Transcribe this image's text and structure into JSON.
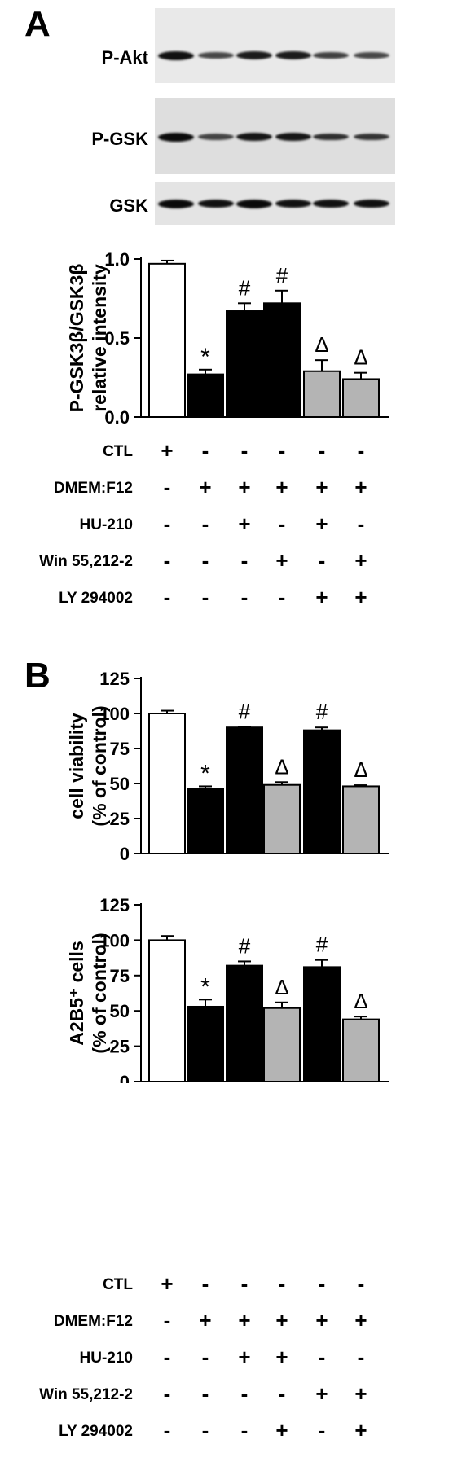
{
  "panel_a": {
    "letter": "A",
    "blots": [
      {
        "label": "P-Akt",
        "bg": "#e9e9e9",
        "band_color": "#101010",
        "intensity": [
          1.0,
          0.55,
          0.9,
          0.9,
          0.6,
          0.55
        ]
      },
      {
        "label": "P-GSK",
        "bg": "#dedede",
        "band_color": "#0c0c0c",
        "intensity": [
          1.0,
          0.5,
          0.9,
          0.9,
          0.7,
          0.65
        ]
      },
      {
        "label": "GSK",
        "bg": "#e4e4e4",
        "band_color": "#0a0a0a",
        "intensity": [
          1.0,
          0.95,
          1.0,
          0.95,
          0.95,
          0.95
        ]
      }
    ],
    "treatments": [
      {
        "label": "CTL",
        "marks": [
          "+",
          "-",
          "-",
          "-",
          "-",
          "-"
        ]
      },
      {
        "label": "DMEM:F12",
        "marks": [
          "-",
          "+",
          "+",
          "+",
          "+",
          "+"
        ]
      },
      {
        "label": "HU-210",
        "marks": [
          "-",
          "-",
          "+",
          "-",
          "+",
          "-"
        ]
      },
      {
        "label": "Win 55,212-2",
        "marks": [
          "-",
          "-",
          "-",
          "+",
          "-",
          "+"
        ]
      },
      {
        "label": "LY 294002",
        "marks": [
          "-",
          "-",
          "-",
          "-",
          "+",
          "+"
        ]
      }
    ]
  },
  "panel_b": {
    "letter": "B",
    "treatments": [
      {
        "label": "CTL",
        "marks": [
          "+",
          "-",
          "-",
          "-",
          "-",
          "-"
        ]
      },
      {
        "label": "DMEM:F12",
        "marks": [
          "-",
          "+",
          "+",
          "+",
          "+",
          "+"
        ]
      },
      {
        "label": "HU-210",
        "marks": [
          "-",
          "-",
          "+",
          "+",
          "-",
          "-"
        ]
      },
      {
        "label": "Win 55,212-2",
        "marks": [
          "-",
          "-",
          "-",
          "-",
          "+",
          "+"
        ]
      },
      {
        "label": "LY 294002",
        "marks": [
          "-",
          "-",
          "-",
          "+",
          "-",
          "+"
        ]
      }
    ]
  },
  "colors": {
    "white_bar": "#ffffff",
    "black_bar": "#000000",
    "gray_bar": "#b4b4b4"
  },
  "chart_data": [
    {
      "type": "bar",
      "ylabel_lines": [
        "P-GSK3β/GSK3β",
        "relative intensity"
      ],
      "ylim": [
        0,
        1.0
      ],
      "yticks": [
        0,
        0.5,
        1.0
      ],
      "yticklabels": [
        "0.0",
        "0.5",
        "1.0"
      ],
      "values": [
        0.97,
        0.27,
        0.67,
        0.72,
        0.29,
        0.24
      ],
      "errors": [
        0.02,
        0.03,
        0.05,
        0.08,
        0.07,
        0.04
      ],
      "bar_colors": [
        "white",
        "black",
        "black",
        "black",
        "gray",
        "gray"
      ],
      "annotations": [
        "",
        "*",
        "#",
        "#",
        "Δ",
        "Δ"
      ]
    },
    {
      "type": "bar",
      "ylabel_lines": [
        "cell viability",
        "(% of control)"
      ],
      "ylim": [
        0,
        125
      ],
      "yticks": [
        0,
        25,
        50,
        75,
        100,
        125
      ],
      "yticklabels": [
        "0",
        "25",
        "50",
        "75",
        "100",
        "125"
      ],
      "values": [
        100,
        46,
        90,
        49,
        88,
        48
      ],
      "errors": [
        2,
        2,
        0.5,
        2,
        2,
        0.8
      ],
      "bar_colors": [
        "white",
        "black",
        "black",
        "gray",
        "black",
        "gray"
      ],
      "annotations": [
        "",
        "*",
        "#",
        "Δ",
        "#",
        "Δ"
      ]
    },
    {
      "type": "bar",
      "ylabel_lines": [
        "A2B5⁺ cells",
        "(% of control)"
      ],
      "ylim": [
        0,
        125
      ],
      "yticks": [
        0,
        25,
        50,
        75,
        100,
        125
      ],
      "yticklabels": [
        "0",
        "25",
        "50",
        "75",
        "100",
        "125"
      ],
      "values": [
        100,
        53,
        82,
        52,
        81,
        44
      ],
      "errors": [
        3,
        5,
        3,
        4,
        5,
        2
      ],
      "bar_colors": [
        "white",
        "black",
        "black",
        "gray",
        "black",
        "gray"
      ],
      "annotations": [
        "",
        "*",
        "#",
        "Δ",
        "#",
        "Δ"
      ]
    }
  ]
}
